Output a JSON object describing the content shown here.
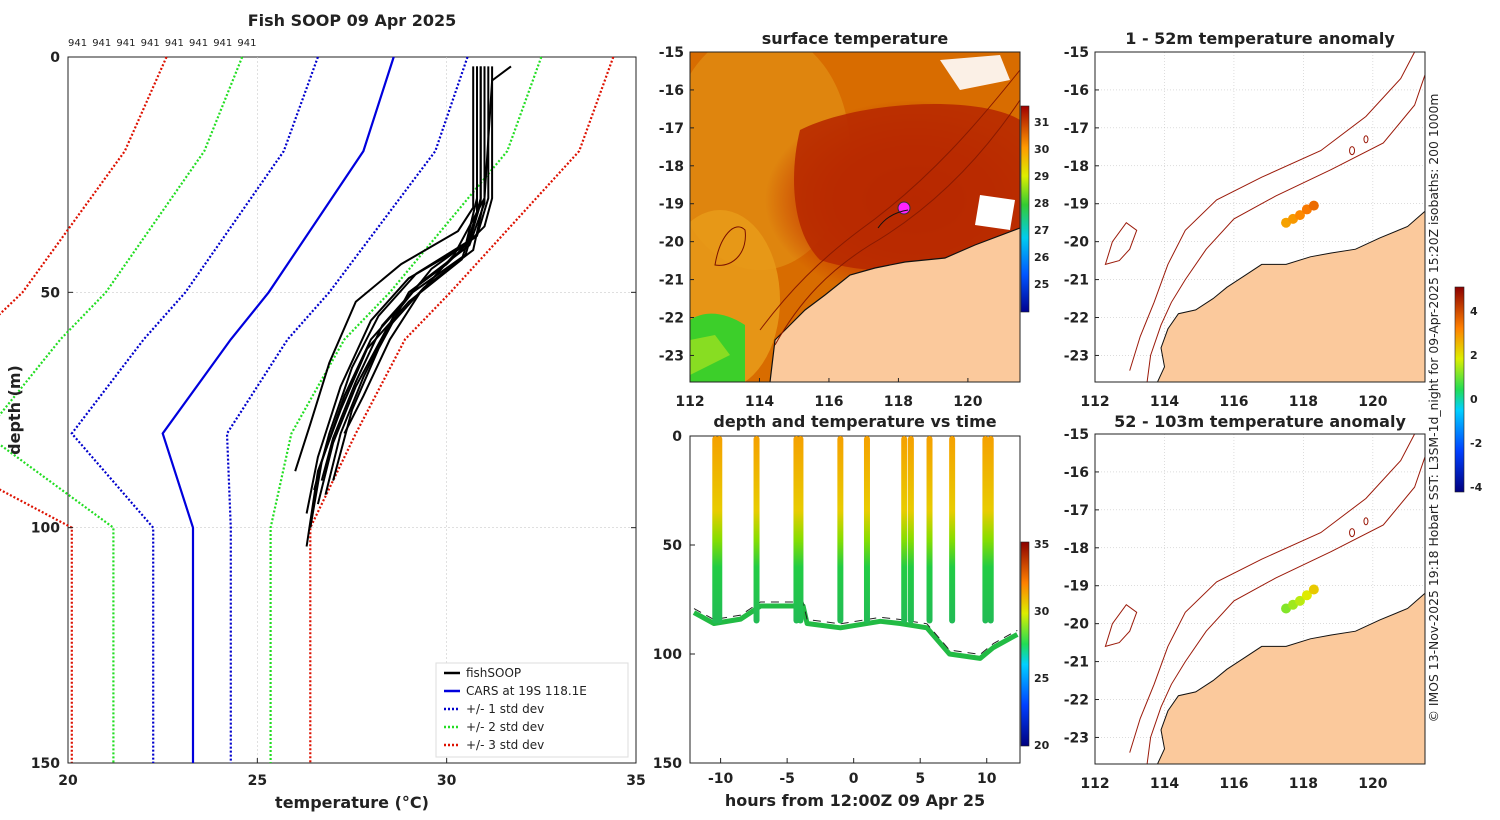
{
  "chart_data": [
    {
      "type": "line",
      "title": "Fish SOOP 09 Apr 2025",
      "xlabel": "temperature (°C)",
      "ylabel": "depth (m)",
      "xlim": [
        20,
        35
      ],
      "ylim": [
        150,
        0
      ],
      "xticks": [
        "20",
        "25",
        "30",
        "35"
      ],
      "yticks": [
        "0",
        "50",
        "100",
        "150"
      ],
      "count_labels": [
        "941",
        "941",
        "941",
        "941",
        "941",
        "941",
        "941",
        "941"
      ],
      "legend": [
        "fishSOOP",
        "CARS at 19S 118.1E",
        "+/- 1 std dev",
        "+/- 2 std dev",
        "+/- 3 std dev"
      ],
      "colors": {
        "fish": "#000000",
        "cars": "#0000dd",
        "std1": "#0000cc",
        "std2": "#22dd22",
        "std3": "#dd1100"
      },
      "depths": [
        0,
        20,
        50,
        60,
        80,
        100,
        150
      ],
      "cars_mean": [
        28.6,
        27.8,
        25.3,
        24.3,
        22.5,
        23.3,
        23.3
      ],
      "std_offsets": {
        "std1": [
          [
            -2.0,
            1.95
          ],
          [
            -2.1,
            1.9
          ],
          [
            -2.2,
            1.6
          ],
          [
            -2.3,
            1.5
          ],
          [
            -2.4,
            1.7
          ],
          [
            -1.05,
            1.0
          ],
          [
            -1.05,
            1.0
          ]
        ],
        "std2": [
          [
            -4.0,
            3.9
          ],
          [
            -4.2,
            3.8
          ],
          [
            -4.3,
            3.2
          ],
          [
            -4.5,
            3.0
          ],
          [
            -4.7,
            3.4
          ],
          [
            -2.1,
            2.05
          ],
          [
            -2.1,
            2.05
          ]
        ],
        "std3": [
          [
            -6.0,
            5.8
          ],
          [
            -6.3,
            5.7
          ],
          [
            -6.5,
            4.8
          ],
          [
            -6.8,
            4.6
          ],
          [
            -7.1,
            5.1
          ],
          [
            -3.2,
            3.1
          ],
          [
            -3.2,
            3.1
          ]
        ]
      },
      "fish_profiles": [
        [
          [
            30.8,
            2
          ],
          [
            30.8,
            30
          ],
          [
            30.5,
            40
          ],
          [
            29.0,
            47
          ],
          [
            28.0,
            56
          ],
          [
            27.2,
            70
          ],
          [
            26.6,
            85
          ],
          [
            26.3,
            97
          ]
        ],
        [
          [
            30.9,
            2
          ],
          [
            30.9,
            30
          ],
          [
            30.6,
            39
          ],
          [
            29.2,
            46
          ],
          [
            28.2,
            55
          ],
          [
            27.5,
            66
          ],
          [
            26.9,
            80
          ],
          [
            26.5,
            92
          ]
        ],
        [
          [
            31.0,
            2
          ],
          [
            31.0,
            30
          ],
          [
            30.7,
            41
          ],
          [
            29.4,
            49
          ],
          [
            28.4,
            58
          ],
          [
            27.6,
            70
          ],
          [
            27.0,
            82
          ],
          [
            26.6,
            95
          ]
        ],
        [
          [
            30.7,
            2
          ],
          [
            30.7,
            32
          ],
          [
            30.3,
            37
          ],
          [
            28.8,
            44
          ],
          [
            27.6,
            52
          ],
          [
            26.9,
            65
          ],
          [
            26.4,
            78
          ],
          [
            26.0,
            88
          ]
        ],
        [
          [
            31.1,
            2
          ],
          [
            31.1,
            30
          ],
          [
            30.8,
            38
          ],
          [
            29.6,
            45
          ],
          [
            28.6,
            55
          ],
          [
            27.8,
            68
          ],
          [
            27.2,
            80
          ],
          [
            26.8,
            93
          ]
        ],
        [
          [
            30.9,
            2
          ],
          [
            30.9,
            31
          ],
          [
            30.5,
            42
          ],
          [
            29.1,
            50
          ],
          [
            28.0,
            60
          ],
          [
            27.3,
            72
          ],
          [
            26.7,
            86
          ],
          [
            26.4,
            100
          ]
        ],
        [
          [
            31.2,
            2
          ],
          [
            31.2,
            30
          ],
          [
            31.0,
            36
          ],
          [
            30.0,
            44
          ],
          [
            29.0,
            50
          ],
          [
            28.2,
            62
          ],
          [
            27.5,
            75
          ],
          [
            27.0,
            90
          ]
        ],
        [
          [
            30.8,
            2
          ],
          [
            30.8,
            33
          ],
          [
            30.4,
            43
          ],
          [
            29.0,
            52
          ],
          [
            27.9,
            62
          ],
          [
            27.2,
            75
          ],
          [
            26.6,
            88
          ],
          [
            26.3,
            104
          ]
        ],
        [
          [
            31.0,
            2
          ],
          [
            31.0,
            31
          ],
          [
            30.6,
            40
          ],
          [
            29.3,
            48
          ],
          [
            28.3,
            57
          ],
          [
            27.6,
            69
          ],
          [
            27.0,
            81
          ],
          [
            26.7,
            90
          ]
        ],
        [
          [
            31.7,
            2
          ],
          [
            31.2,
            5
          ],
          [
            31.0,
            30
          ],
          [
            30.2,
            42
          ],
          [
            29.3,
            50
          ],
          [
            28.5,
            60
          ],
          [
            27.8,
            72
          ],
          [
            27.3,
            80
          ]
        ]
      ]
    },
    {
      "type": "heatmap",
      "title": "surface temperature",
      "xticks": [
        "112",
        "114",
        "116",
        "118",
        "120"
      ],
      "yticks": [
        "-15",
        "-16",
        "-17",
        "-18",
        "-19",
        "-20",
        "-21",
        "-22",
        "-23"
      ],
      "colorbar_ticks": [
        "31",
        "30",
        "29",
        "28",
        "27",
        "26",
        "25"
      ]
    },
    {
      "type": "scatter",
      "title": "depth and temperature vs time",
      "xlabel": "hours from 12:00Z 09 Apr 25",
      "xticks": [
        "-10",
        "-5",
        "0",
        "5",
        "10"
      ],
      "yticks": [
        "0",
        "50",
        "100",
        "150"
      ],
      "xlim": [
        -12.3,
        12.5
      ],
      "ylim": [
        150,
        0
      ],
      "colorbar_ticks": [
        "35",
        "30",
        "25",
        "20"
      ],
      "bottom_depth": [
        [
          -12,
          81
        ],
        [
          -10.5,
          86
        ],
        [
          -8.5,
          84
        ],
        [
          -7,
          78
        ],
        [
          -3.8,
          78
        ],
        [
          -3.5,
          86
        ],
        [
          -1,
          88
        ],
        [
          2,
          85
        ],
        [
          3.5,
          86
        ],
        [
          5.5,
          88
        ],
        [
          7.2,
          100
        ],
        [
          9.5,
          102
        ],
        [
          10.5,
          97
        ],
        [
          12.3,
          91
        ]
      ],
      "haul_times": [
        -10.4,
        -10.1,
        -7.3,
        -4.3,
        -4.0,
        -1.0,
        1.0,
        3.8,
        4.3,
        5.7,
        7.4,
        9.9,
        10.3
      ]
    },
    {
      "type": "scatter",
      "title": "1 - 52m temperature anomaly",
      "xticks": [
        "112",
        "114",
        "116",
        "118",
        "120"
      ],
      "yticks": [
        "-15",
        "-16",
        "-17",
        "-18",
        "-19",
        "-20",
        "-21",
        "-22",
        "-23"
      ],
      "points": [
        [
          117.5,
          -19.5,
          2.8
        ],
        [
          117.7,
          -19.4,
          2.9
        ],
        [
          117.9,
          -19.3,
          3.1
        ],
        [
          118.1,
          -19.15,
          3.3
        ],
        [
          118.3,
          -19.05,
          3.5
        ]
      ]
    },
    {
      "type": "scatter",
      "title": "52 - 103m temperature anomaly",
      "xticks": [
        "112",
        "114",
        "116",
        "118",
        "120"
      ],
      "yticks": [
        "-15",
        "-16",
        "-17",
        "-18",
        "-19",
        "-20",
        "-21",
        "-22",
        "-23"
      ],
      "points": [
        [
          117.5,
          -19.6,
          1.2
        ],
        [
          117.7,
          -19.5,
          1.4
        ],
        [
          117.9,
          -19.4,
          1.6
        ],
        [
          118.1,
          -19.25,
          1.9
        ],
        [
          118.3,
          -19.1,
          2.3
        ]
      ],
      "colorbar_ticks": [
        "4",
        "2",
        "0",
        "-2",
        "-4"
      ]
    }
  ],
  "credit": "© IMOS 13-Nov-2025 19:18 Hobart SST: L3SM-1d_night for 09-Apr-2025 15:20Z isobaths: 200  1000m"
}
